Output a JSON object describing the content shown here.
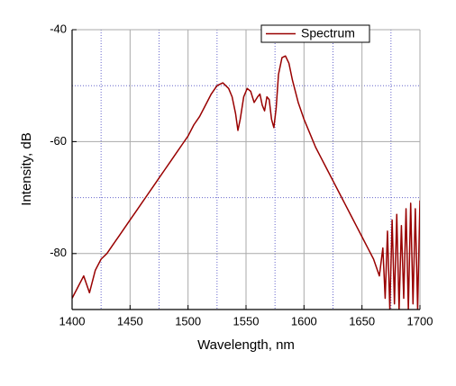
{
  "chart_data": {
    "type": "line",
    "x_label": "Wavelength, nm",
    "y_label": "Intensity, dB",
    "x": [
      1400,
      1405,
      1410,
      1415,
      1420,
      1425,
      1430,
      1435,
      1440,
      1445,
      1450,
      1455,
      1460,
      1465,
      1470,
      1475,
      1480,
      1485,
      1490,
      1495,
      1500,
      1505,
      1510,
      1515,
      1520,
      1525,
      1530,
      1535,
      1538,
      1541,
      1543,
      1545,
      1548,
      1551,
      1554,
      1557,
      1560,
      1562,
      1564,
      1566,
      1568,
      1570,
      1572,
      1574,
      1576,
      1578,
      1581,
      1584,
      1587,
      1590,
      1595,
      1600,
      1605,
      1610,
      1615,
      1620,
      1625,
      1630,
      1635,
      1640,
      1645,
      1650,
      1655,
      1660,
      1665,
      1668,
      1670,
      1672,
      1674,
      1676,
      1678,
      1680,
      1682,
      1684,
      1686,
      1688,
      1690,
      1692,
      1694,
      1696,
      1698,
      1700
    ],
    "series": [
      {
        "name": "Spectrum",
        "color": "#990000",
        "values": [
          -88,
          -86,
          -84,
          -87,
          -83,
          -81,
          -80,
          -78.5,
          -77,
          -75.5,
          -74,
          -72.5,
          -71,
          -69.5,
          -68,
          -66.5,
          -65,
          -63.5,
          -62,
          -60.5,
          -59,
          -57,
          -55.5,
          -53.5,
          -51.5,
          -50,
          -49.5,
          -50.5,
          -52,
          -55,
          -58,
          -56,
          -52,
          -50.5,
          -51,
          -53,
          -52,
          -51.5,
          -53.5,
          -54.5,
          -52,
          -52.5,
          -56,
          -57.5,
          -54,
          -48,
          -45,
          -44.7,
          -46,
          -49,
          -53,
          -56,
          -58.5,
          -61,
          -63,
          -65,
          -67,
          -69,
          -71,
          -73,
          -75,
          -77,
          -79,
          -81,
          -84,
          -79,
          -88,
          -76,
          -90,
          -74,
          -89,
          -73,
          -90,
          -75,
          -88,
          -72,
          -90,
          -71,
          -89,
          -72,
          -90,
          -70.5
        ]
      }
    ],
    "xlim": [
      1400,
      1700
    ],
    "xticks": [
      1400,
      1450,
      1500,
      1550,
      1600,
      1650,
      1700
    ],
    "ylim": [
      -90,
      -40
    ],
    "yticks": [
      -40,
      -60,
      -80
    ],
    "minor_xticks": [
      1425,
      1475,
      1525,
      1575,
      1625,
      1675
    ],
    "minor_yticks": [
      -50,
      -70
    ],
    "grid": true,
    "legend": "top-right"
  }
}
